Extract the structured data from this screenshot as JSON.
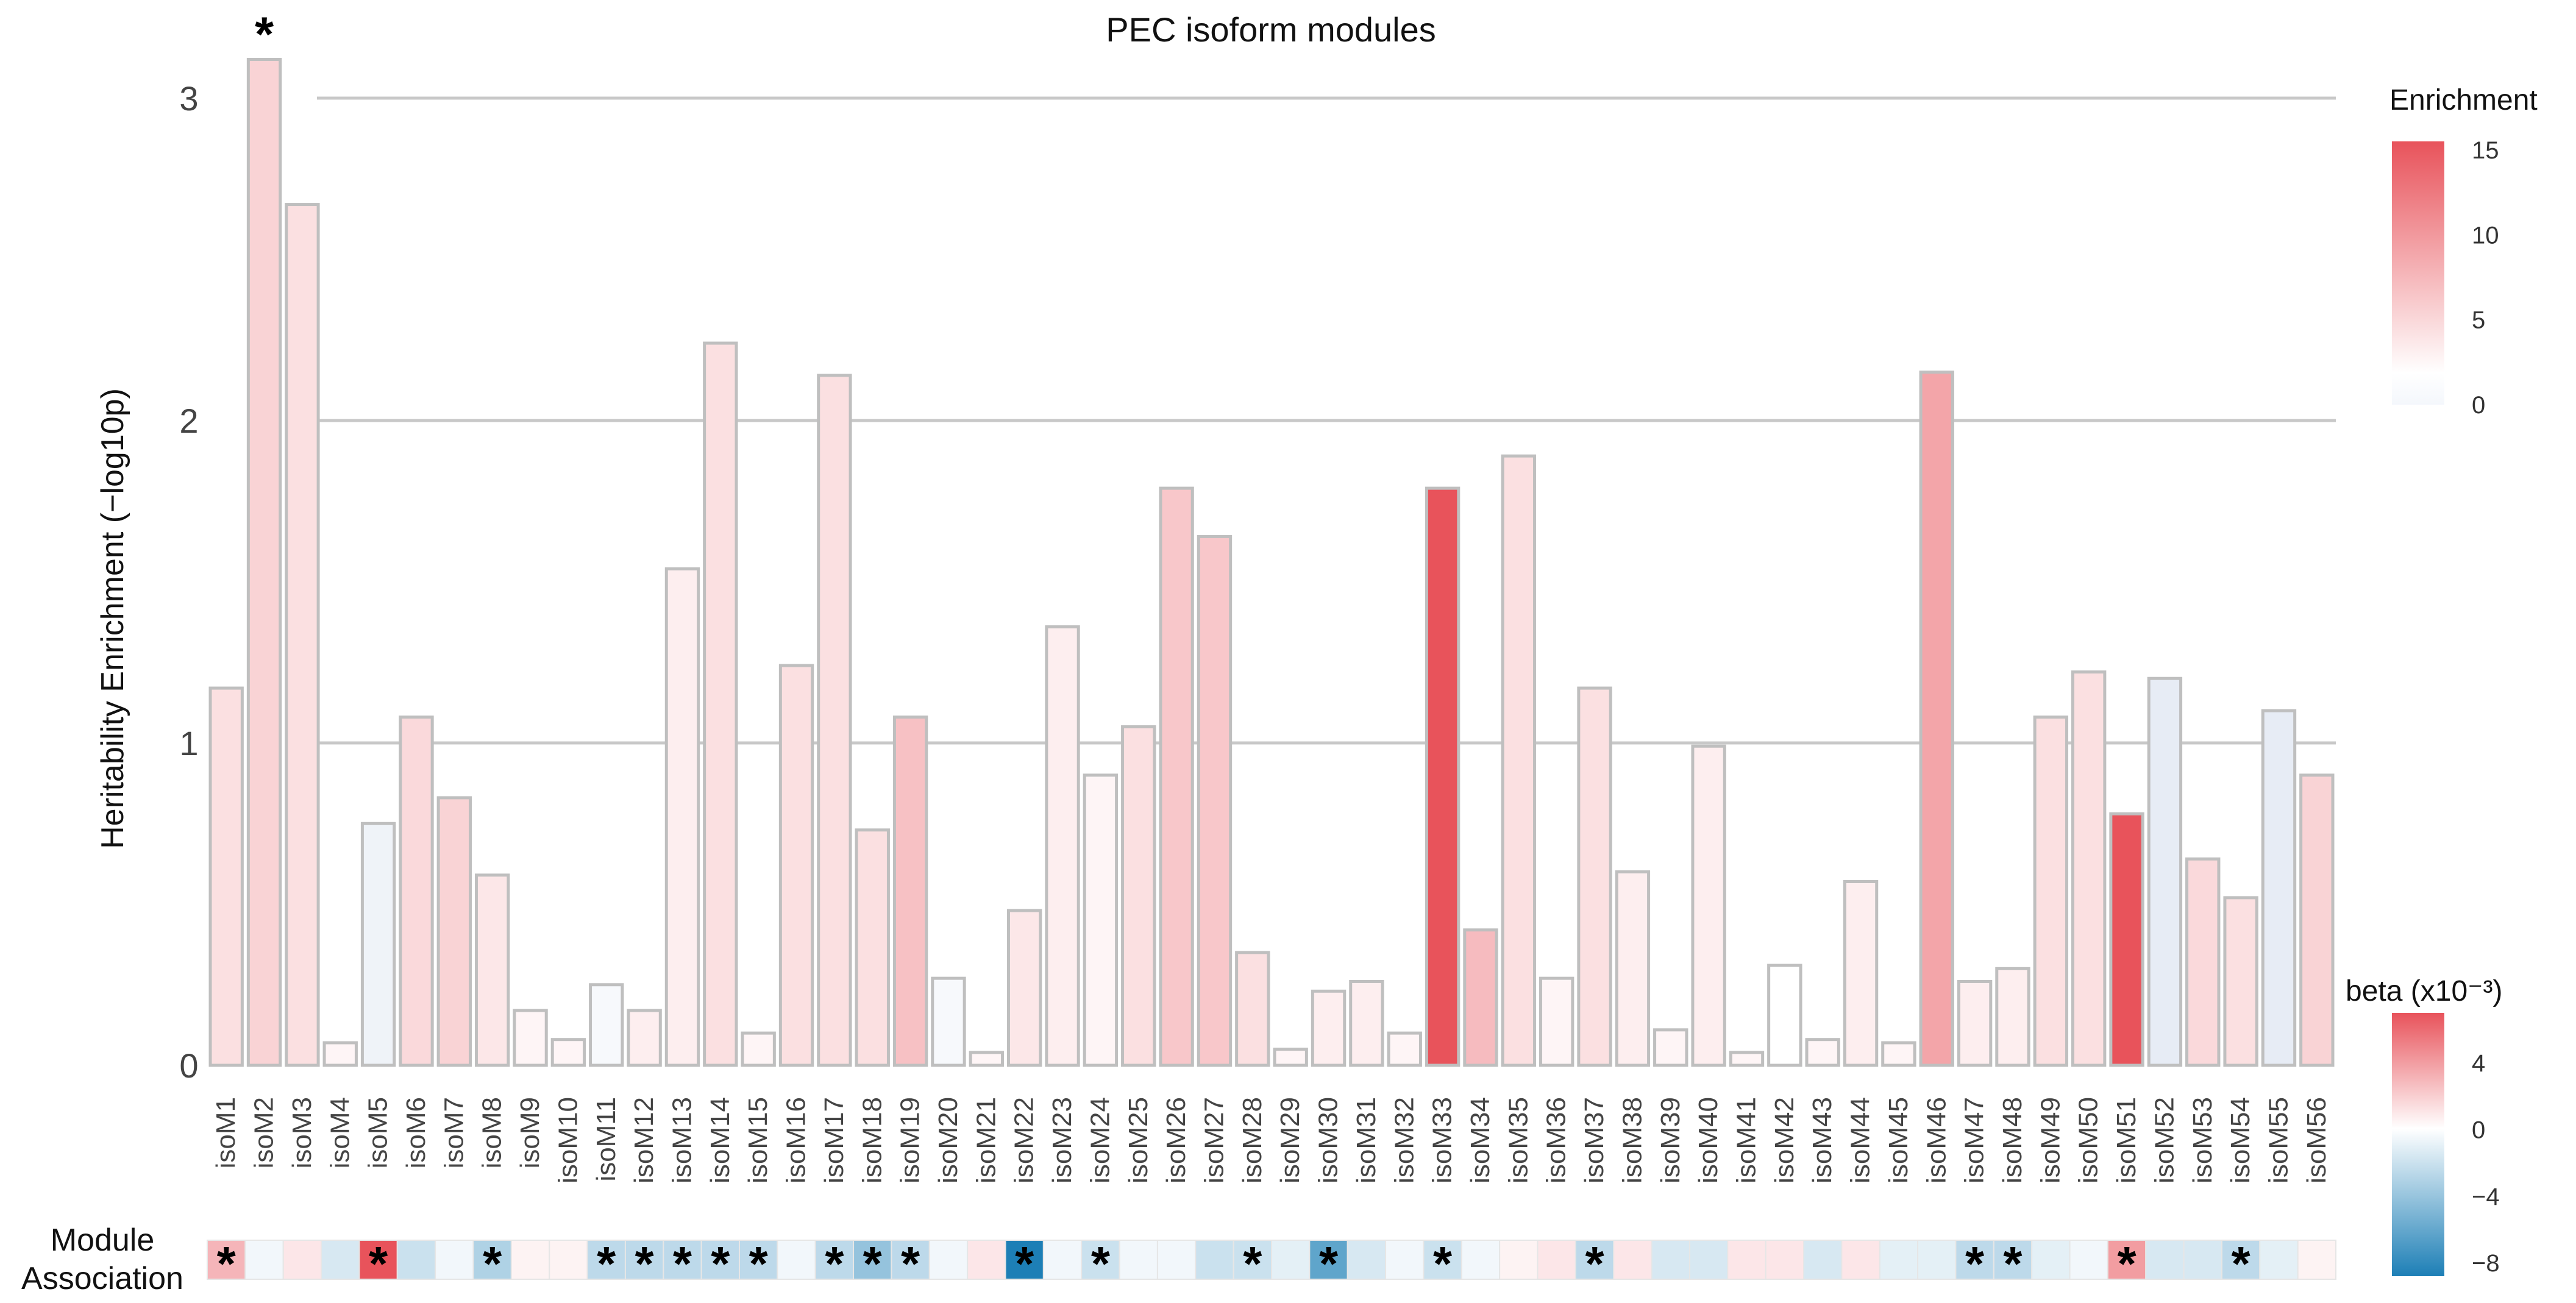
{
  "chart_data": {
    "type": "bar",
    "title": "PEC isoform modules",
    "ylabel": "Heritability Enrichment (−log10p)",
    "ylim": [
      0,
      3.15
    ],
    "yticks": [
      0,
      1,
      2,
      3
    ],
    "grid": true,
    "categories": [
      "isoM1",
      "isoM2",
      "isoM3",
      "isoM4",
      "isoM5",
      "isoM6",
      "isoM7",
      "isoM8",
      "isoM9",
      "isoM10",
      "isoM11",
      "isoM12",
      "isoM13",
      "isoM14",
      "isoM15",
      "isoM16",
      "isoM17",
      "isoM18",
      "isoM19",
      "isoM20",
      "isoM21",
      "isoM22",
      "isoM23",
      "isoM24",
      "isoM25",
      "isoM26",
      "isoM27",
      "isoM28",
      "isoM29",
      "isoM30",
      "isoM31",
      "isoM32",
      "isoM33",
      "isoM34",
      "isoM35",
      "isoM36",
      "isoM37",
      "isoM38",
      "isoM39",
      "isoM40",
      "isoM41",
      "isoM42",
      "isoM43",
      "isoM44",
      "isoM45",
      "isoM46",
      "isoM47",
      "isoM48",
      "isoM49",
      "isoM50",
      "isoM51",
      "isoM52",
      "isoM53",
      "isoM54",
      "isoM55",
      "isoM56"
    ],
    "values": [
      1.17,
      3.12,
      2.67,
      0.07,
      0.75,
      1.08,
      0.83,
      0.59,
      0.17,
      0.08,
      0.25,
      0.17,
      1.54,
      2.24,
      0.1,
      1.24,
      2.14,
      0.73,
      1.08,
      0.27,
      0.04,
      0.48,
      1.36,
      0.9,
      1.05,
      1.79,
      1.64,
      0.35,
      0.05,
      0.23,
      0.26,
      0.1,
      1.79,
      0.42,
      1.89,
      0.27,
      1.17,
      0.6,
      0.11,
      0.99,
      0.04,
      0.31,
      0.08,
      0.57,
      0.07,
      2.15,
      0.26,
      0.3,
      1.08,
      1.22,
      0.78,
      1.2,
      0.64,
      0.52,
      1.1,
      0.9
    ],
    "enrichment": [
      2,
      3,
      2,
      0.5,
      -1,
      2.5,
      3,
      1.5,
      0.5,
      0.5,
      -0.5,
      1,
      1,
      2,
      0.5,
      2,
      2,
      2,
      4.5,
      -0.5,
      0.5,
      1.5,
      1,
      0.5,
      2,
      4,
      4,
      2,
      0.5,
      1,
      1,
      0.5,
      15,
      5,
      2,
      0.5,
      2,
      1,
      0.5,
      1,
      0.5,
      0,
      0.5,
      1,
      0.5,
      7,
      1,
      1,
      2,
      2,
      15,
      -1.5,
      2.5,
      2,
      -1.5,
      3
    ],
    "beta": [
      3,
      -0.5,
      1,
      -1.5,
      7,
      -2,
      -0.5,
      -3,
      0.5,
      0.5,
      -2.5,
      -2.5,
      -2.5,
      -2.5,
      -2.5,
      -0.5,
      -2.5,
      -4,
      -2.5,
      -0.5,
      1,
      -8.5,
      -0.5,
      -2,
      -0.5,
      -0.5,
      -2,
      -2,
      -1,
      -6,
      -1.5,
      -0.5,
      -2,
      -0.5,
      0.5,
      1,
      -2.5,
      1,
      -1.5,
      -1.5,
      1,
      1,
      -1.5,
      1,
      -1,
      -1,
      -2.5,
      -2.5,
      -1,
      -0.5,
      4,
      -1.5,
      -1.5,
      -2.5,
      -1,
      0.5
    ],
    "bar_stars": [
      "isoM2"
    ],
    "association_stars": [
      "isoM1",
      "isoM5",
      "isoM8",
      "isoM11",
      "isoM12",
      "isoM13",
      "isoM14",
      "isoM15",
      "isoM17",
      "isoM18",
      "isoM19",
      "isoM22",
      "isoM24",
      "isoM28",
      "isoM30",
      "isoM33",
      "isoM37",
      "isoM47",
      "isoM48",
      "isoM51",
      "isoM54"
    ],
    "star_symbol": "*",
    "association_label_line1": "Module",
    "association_label_line2": "Association",
    "legend_enrichment": {
      "title": "Enrichment",
      "range": [
        0,
        15.5
      ],
      "ticks": [
        "15",
        "10",
        "5",
        "0"
      ],
      "tick_values": [
        15,
        10,
        5,
        0
      ],
      "placement": "top-right"
    },
    "legend_beta": {
      "title": "beta (x10⁻³)",
      "range": [
        -8.8,
        7
      ],
      "ticks": [
        "4",
        "0",
        "−4",
        "−8"
      ],
      "tick_values": [
        4,
        0,
        -4,
        -8
      ],
      "placement": "bottom-right"
    },
    "colors": {
      "pos": "#e8535b",
      "neg": "#1d7fb6",
      "zero": "#ffffff",
      "light": "#f6f8fc",
      "grid": "#c8c8c8",
      "bar_edge": "#bfbfbf"
    }
  }
}
